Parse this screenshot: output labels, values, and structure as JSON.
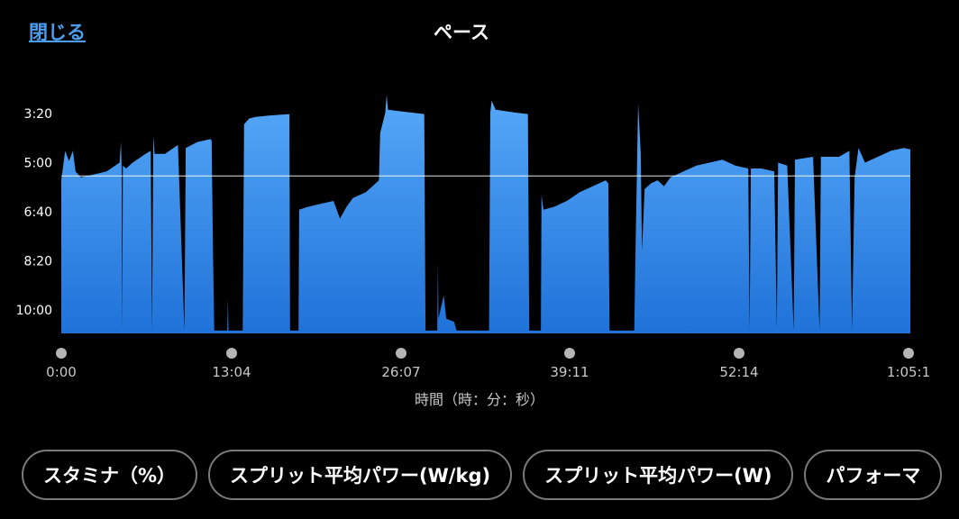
{
  "header": {
    "close_label": "閉じる",
    "title": "ペース"
  },
  "chart_data": {
    "type": "area",
    "title": "ペース",
    "xlabel": "時間（時：分：秒）",
    "ylabel": "",
    "x_tick_labels": [
      "0:00",
      "13:04",
      "26:07",
      "39:11",
      "52:14",
      "1:05:1"
    ],
    "y_tick_labels": [
      "3:20",
      "5:00",
      "6:40",
      "8:20",
      "10:00"
    ],
    "x_unit": "minutes",
    "x_range": [
      0,
      65.5
    ],
    "y_unit": "minutes per km (pace, inverted axis)",
    "y_range_min_per_km": [
      3.333,
      10.0
    ],
    "y_inverted": true,
    "average_line_pace": 5.45,
    "fill_color_top": "#56a8f8",
    "fill_color_bottom": "#1f72d8",
    "average_line_color": "#ffffff",
    "series": [
      {
        "points": [
          [
            0.0,
            5.6
          ],
          [
            0.3,
            4.6
          ],
          [
            0.6,
            4.95
          ],
          [
            0.9,
            4.6
          ],
          [
            1.1,
            5.3
          ],
          [
            1.5,
            5.5
          ],
          [
            2.5,
            5.4
          ],
          [
            3.5,
            5.3
          ],
          [
            4.5,
            5.0
          ],
          [
            4.6,
            4.3
          ],
          [
            4.65,
            5.1
          ],
          [
            4.7,
            10.7
          ],
          [
            4.75,
            5.1
          ],
          [
            5.0,
            5.2
          ],
          [
            5.5,
            5.0
          ],
          [
            6.5,
            4.7
          ],
          [
            6.9,
            4.6
          ],
          [
            7.0,
            10.7
          ],
          [
            7.1,
            4.1
          ],
          [
            7.2,
            4.7
          ],
          [
            8.0,
            4.7
          ],
          [
            9.0,
            4.4
          ],
          [
            9.5,
            10.7
          ],
          [
            9.6,
            4.5
          ],
          [
            10.5,
            4.3
          ],
          [
            11.5,
            4.2
          ],
          [
            11.6,
            4.25
          ],
          [
            11.7,
            8.0
          ],
          [
            11.8,
            10.7
          ],
          [
            12.8,
            10.7
          ],
          [
            12.85,
            9.6
          ],
          [
            12.9,
            10.7
          ],
          [
            14.0,
            10.7
          ],
          [
            14.1,
            3.7
          ],
          [
            14.5,
            3.5
          ],
          [
            15.0,
            3.45
          ],
          [
            16.0,
            3.4
          ],
          [
            17.6,
            3.35
          ],
          [
            17.65,
            10.7
          ],
          [
            18.3,
            10.7
          ],
          [
            18.35,
            6.6
          ],
          [
            19.0,
            6.5
          ],
          [
            20.0,
            6.4
          ],
          [
            21.0,
            6.3
          ],
          [
            21.5,
            6.9
          ],
          [
            22.0,
            6.5
          ],
          [
            22.5,
            6.2
          ],
          [
            23.0,
            6.1
          ],
          [
            23.5,
            6.0
          ],
          [
            24.0,
            5.8
          ],
          [
            24.5,
            5.6
          ],
          [
            24.6,
            4.0
          ],
          [
            25.0,
            3.3
          ],
          [
            25.1,
            2.7
          ],
          [
            25.2,
            3.2
          ],
          [
            26.0,
            3.25
          ],
          [
            27.0,
            3.3
          ],
          [
            28.0,
            3.35
          ],
          [
            28.1,
            10.7
          ],
          [
            29.0,
            10.7
          ],
          [
            29.05,
            8.4
          ],
          [
            29.1,
            10.3
          ],
          [
            29.5,
            9.5
          ],
          [
            29.7,
            10.3
          ],
          [
            30.3,
            10.4
          ],
          [
            30.5,
            10.7
          ],
          [
            33.0,
            10.7
          ],
          [
            33.1,
            3.3
          ],
          [
            33.2,
            2.9
          ],
          [
            33.5,
            3.2
          ],
          [
            35.0,
            3.3
          ],
          [
            36.0,
            3.35
          ],
          [
            36.1,
            10.7
          ],
          [
            37.0,
            10.7
          ],
          [
            37.05,
            6.1
          ],
          [
            37.2,
            6.6
          ],
          [
            38.0,
            6.5
          ],
          [
            39.0,
            6.3
          ],
          [
            40.0,
            6.0
          ],
          [
            41.0,
            5.8
          ],
          [
            42.0,
            5.6
          ],
          [
            42.2,
            5.7
          ],
          [
            42.3,
            10.7
          ],
          [
            44.2,
            10.7
          ],
          [
            44.3,
            8.0
          ],
          [
            44.5,
            3.0
          ],
          [
            44.7,
            4.7
          ],
          [
            44.8,
            8.0
          ],
          [
            45.0,
            5.9
          ],
          [
            45.5,
            5.7
          ],
          [
            46.0,
            5.6
          ],
          [
            46.5,
            5.8
          ],
          [
            47.0,
            5.5
          ],
          [
            48.0,
            5.3
          ],
          [
            49.0,
            5.1
          ],
          [
            50.0,
            5.0
          ],
          [
            51.0,
            4.9
          ],
          [
            52.0,
            5.1
          ],
          [
            53.0,
            5.2
          ],
          [
            53.1,
            10.7
          ],
          [
            53.2,
            5.2
          ],
          [
            54.0,
            5.2
          ],
          [
            55.0,
            5.3
          ],
          [
            55.2,
            10.6
          ],
          [
            55.3,
            5.0
          ],
          [
            56.0,
            5.1
          ],
          [
            56.5,
            10.7
          ],
          [
            56.6,
            4.9
          ],
          [
            58.0,
            4.8
          ],
          [
            58.5,
            10.7
          ],
          [
            58.6,
            4.8
          ],
          [
            60.0,
            4.8
          ],
          [
            60.8,
            4.6
          ],
          [
            61.0,
            10.7
          ],
          [
            61.2,
            5.5
          ],
          [
            61.5,
            4.5
          ],
          [
            62.0,
            5.0
          ],
          [
            63.0,
            4.8
          ],
          [
            64.0,
            4.6
          ],
          [
            65.0,
            4.5
          ],
          [
            65.5,
            4.55
          ]
        ]
      }
    ]
  },
  "chips": [
    "スタミナ（%）",
    "スプリット平均パワー(W/kg)",
    "スプリット平均パワー(W)",
    "パフォーマ"
  ]
}
